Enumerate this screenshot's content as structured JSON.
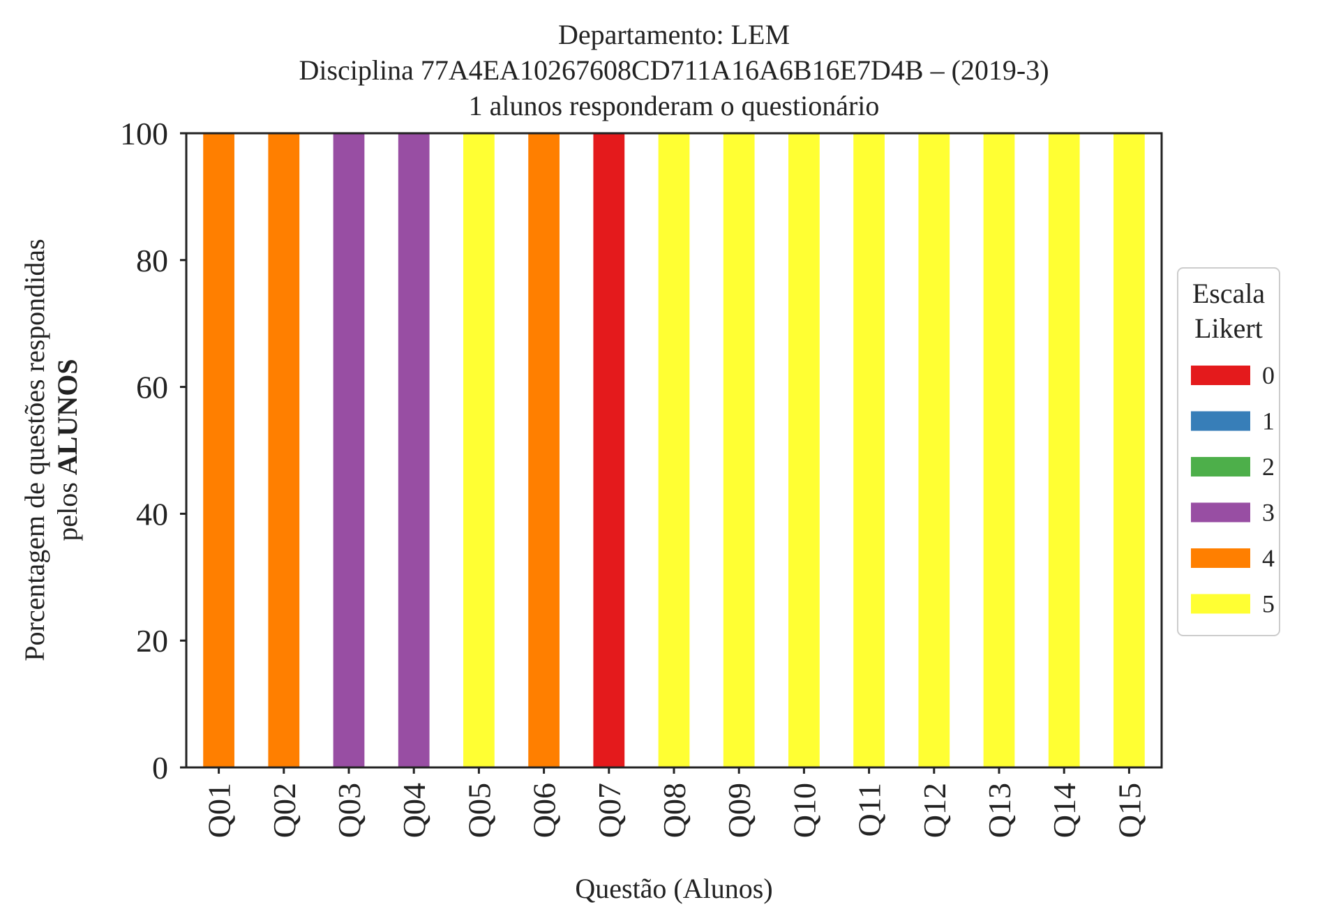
{
  "chart_data": {
    "type": "bar",
    "stacked": true,
    "title_lines": [
      "Departamento: LEM",
      "Disciplina 77A4EA10267608CD711A16A6B16E7D4B – (2019-3)",
      "1 alunos responderam o questionário"
    ],
    "xlabel": "Questão (Alunos)",
    "ylabel_line1": "Porcentagem de questões respondidas",
    "ylabel_line2_prefix": "pelos ",
    "ylabel_line2_bold": "ALUNOS",
    "ylim": [
      0,
      100
    ],
    "yticks": [
      "0",
      "20",
      "40",
      "60",
      "80",
      "100"
    ],
    "categories": [
      "Q01",
      "Q02",
      "Q03",
      "Q04",
      "Q05",
      "Q06",
      "Q07",
      "Q08",
      "Q09",
      "Q10",
      "Q11",
      "Q12",
      "Q13",
      "Q14",
      "Q15"
    ],
    "series": [
      {
        "name": "0",
        "color": "#e41a1c",
        "values": [
          0,
          0,
          0,
          0,
          0,
          0,
          100,
          0,
          0,
          0,
          0,
          0,
          0,
          0,
          0
        ]
      },
      {
        "name": "1",
        "color": "#377eb8",
        "values": [
          0,
          0,
          0,
          0,
          0,
          0,
          0,
          0,
          0,
          0,
          0,
          0,
          0,
          0,
          0
        ]
      },
      {
        "name": "2",
        "color": "#4daf4a",
        "values": [
          0,
          0,
          0,
          0,
          0,
          0,
          0,
          0,
          0,
          0,
          0,
          0,
          0,
          0,
          0
        ]
      },
      {
        "name": "3",
        "color": "#984ea3",
        "values": [
          0,
          0,
          100,
          100,
          0,
          0,
          0,
          0,
          0,
          0,
          0,
          0,
          0,
          0,
          0
        ]
      },
      {
        "name": "4",
        "color": "#ff7f00",
        "values": [
          100,
          100,
          0,
          0,
          0,
          100,
          0,
          0,
          0,
          0,
          0,
          0,
          0,
          0,
          0
        ]
      },
      {
        "name": "5",
        "color": "#ffff33",
        "values": [
          0,
          0,
          0,
          0,
          100,
          0,
          0,
          100,
          100,
          100,
          100,
          100,
          100,
          100,
          100
        ]
      }
    ],
    "grid": false,
    "legend": {
      "title_lines": [
        "Escala",
        "Likert"
      ],
      "placement": "right"
    }
  }
}
